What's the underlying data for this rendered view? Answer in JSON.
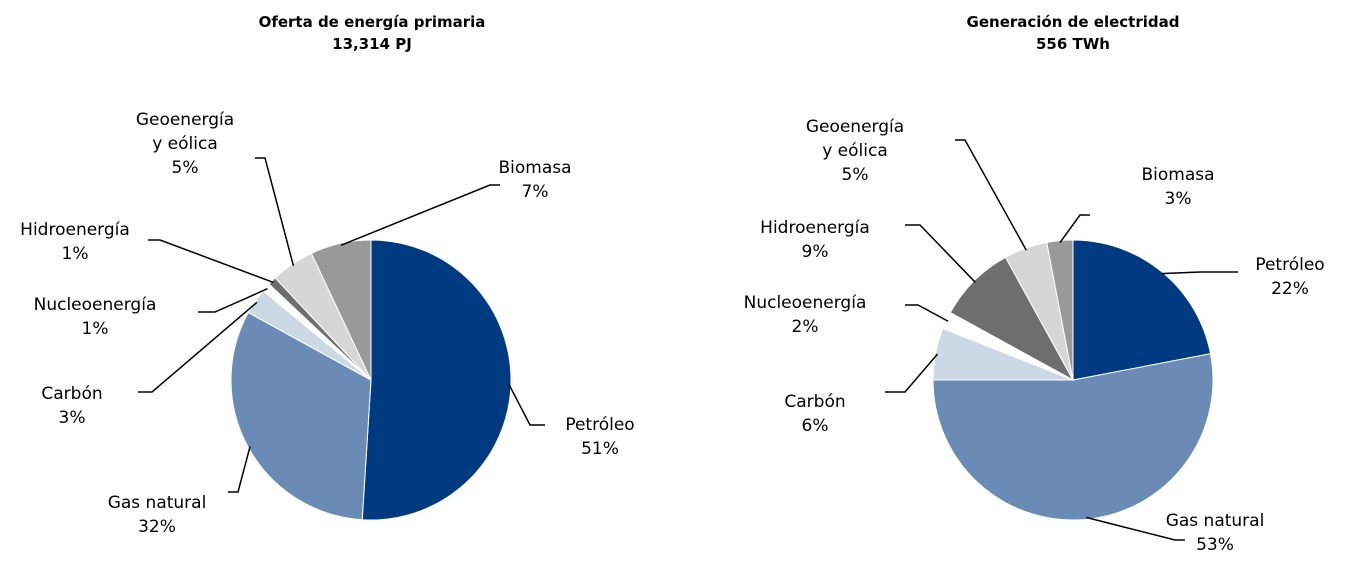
{
  "chart_data": [
    {
      "type": "pie",
      "title": "Oferta de energía primaria",
      "subtitle": "13,314 PJ",
      "categories": [
        "Petróleo",
        "Gas natural",
        "Carbón",
        "Nucleoenergía",
        "Hidroenergía",
        "Geoenergía y eólica",
        "Biomasa"
      ],
      "values": [
        51,
        32,
        3,
        1,
        1,
        5,
        7
      ],
      "value_labels": [
        "51%",
        "32%",
        "3%",
        "1%",
        "1%",
        "5%",
        "7%"
      ],
      "colors": [
        "#003a80",
        "#6a8bb5",
        "#ccd8e6",
        "#ffffff",
        "#6e6e6e",
        "#d6d6d6",
        "#999999"
      ]
    },
    {
      "type": "pie",
      "title": "Generación de electridad",
      "subtitle": "556 TWh",
      "categories": [
        "Petróleo",
        "Gas natural",
        "Carbón",
        "Nucleoenergía",
        "Hidroenergía",
        "Geoenergía y eólica",
        "Biomasa"
      ],
      "values": [
        22,
        53,
        6,
        2,
        9,
        5,
        3
      ],
      "value_labels": [
        "22%",
        "53%",
        "6%",
        "2%",
        "9%",
        "5%",
        "3%"
      ],
      "colors": [
        "#003a80",
        "#6a8bb5",
        "#ccd8e6",
        "#ffffff",
        "#6e6e6e",
        "#d6d6d6",
        "#999999"
      ]
    }
  ]
}
